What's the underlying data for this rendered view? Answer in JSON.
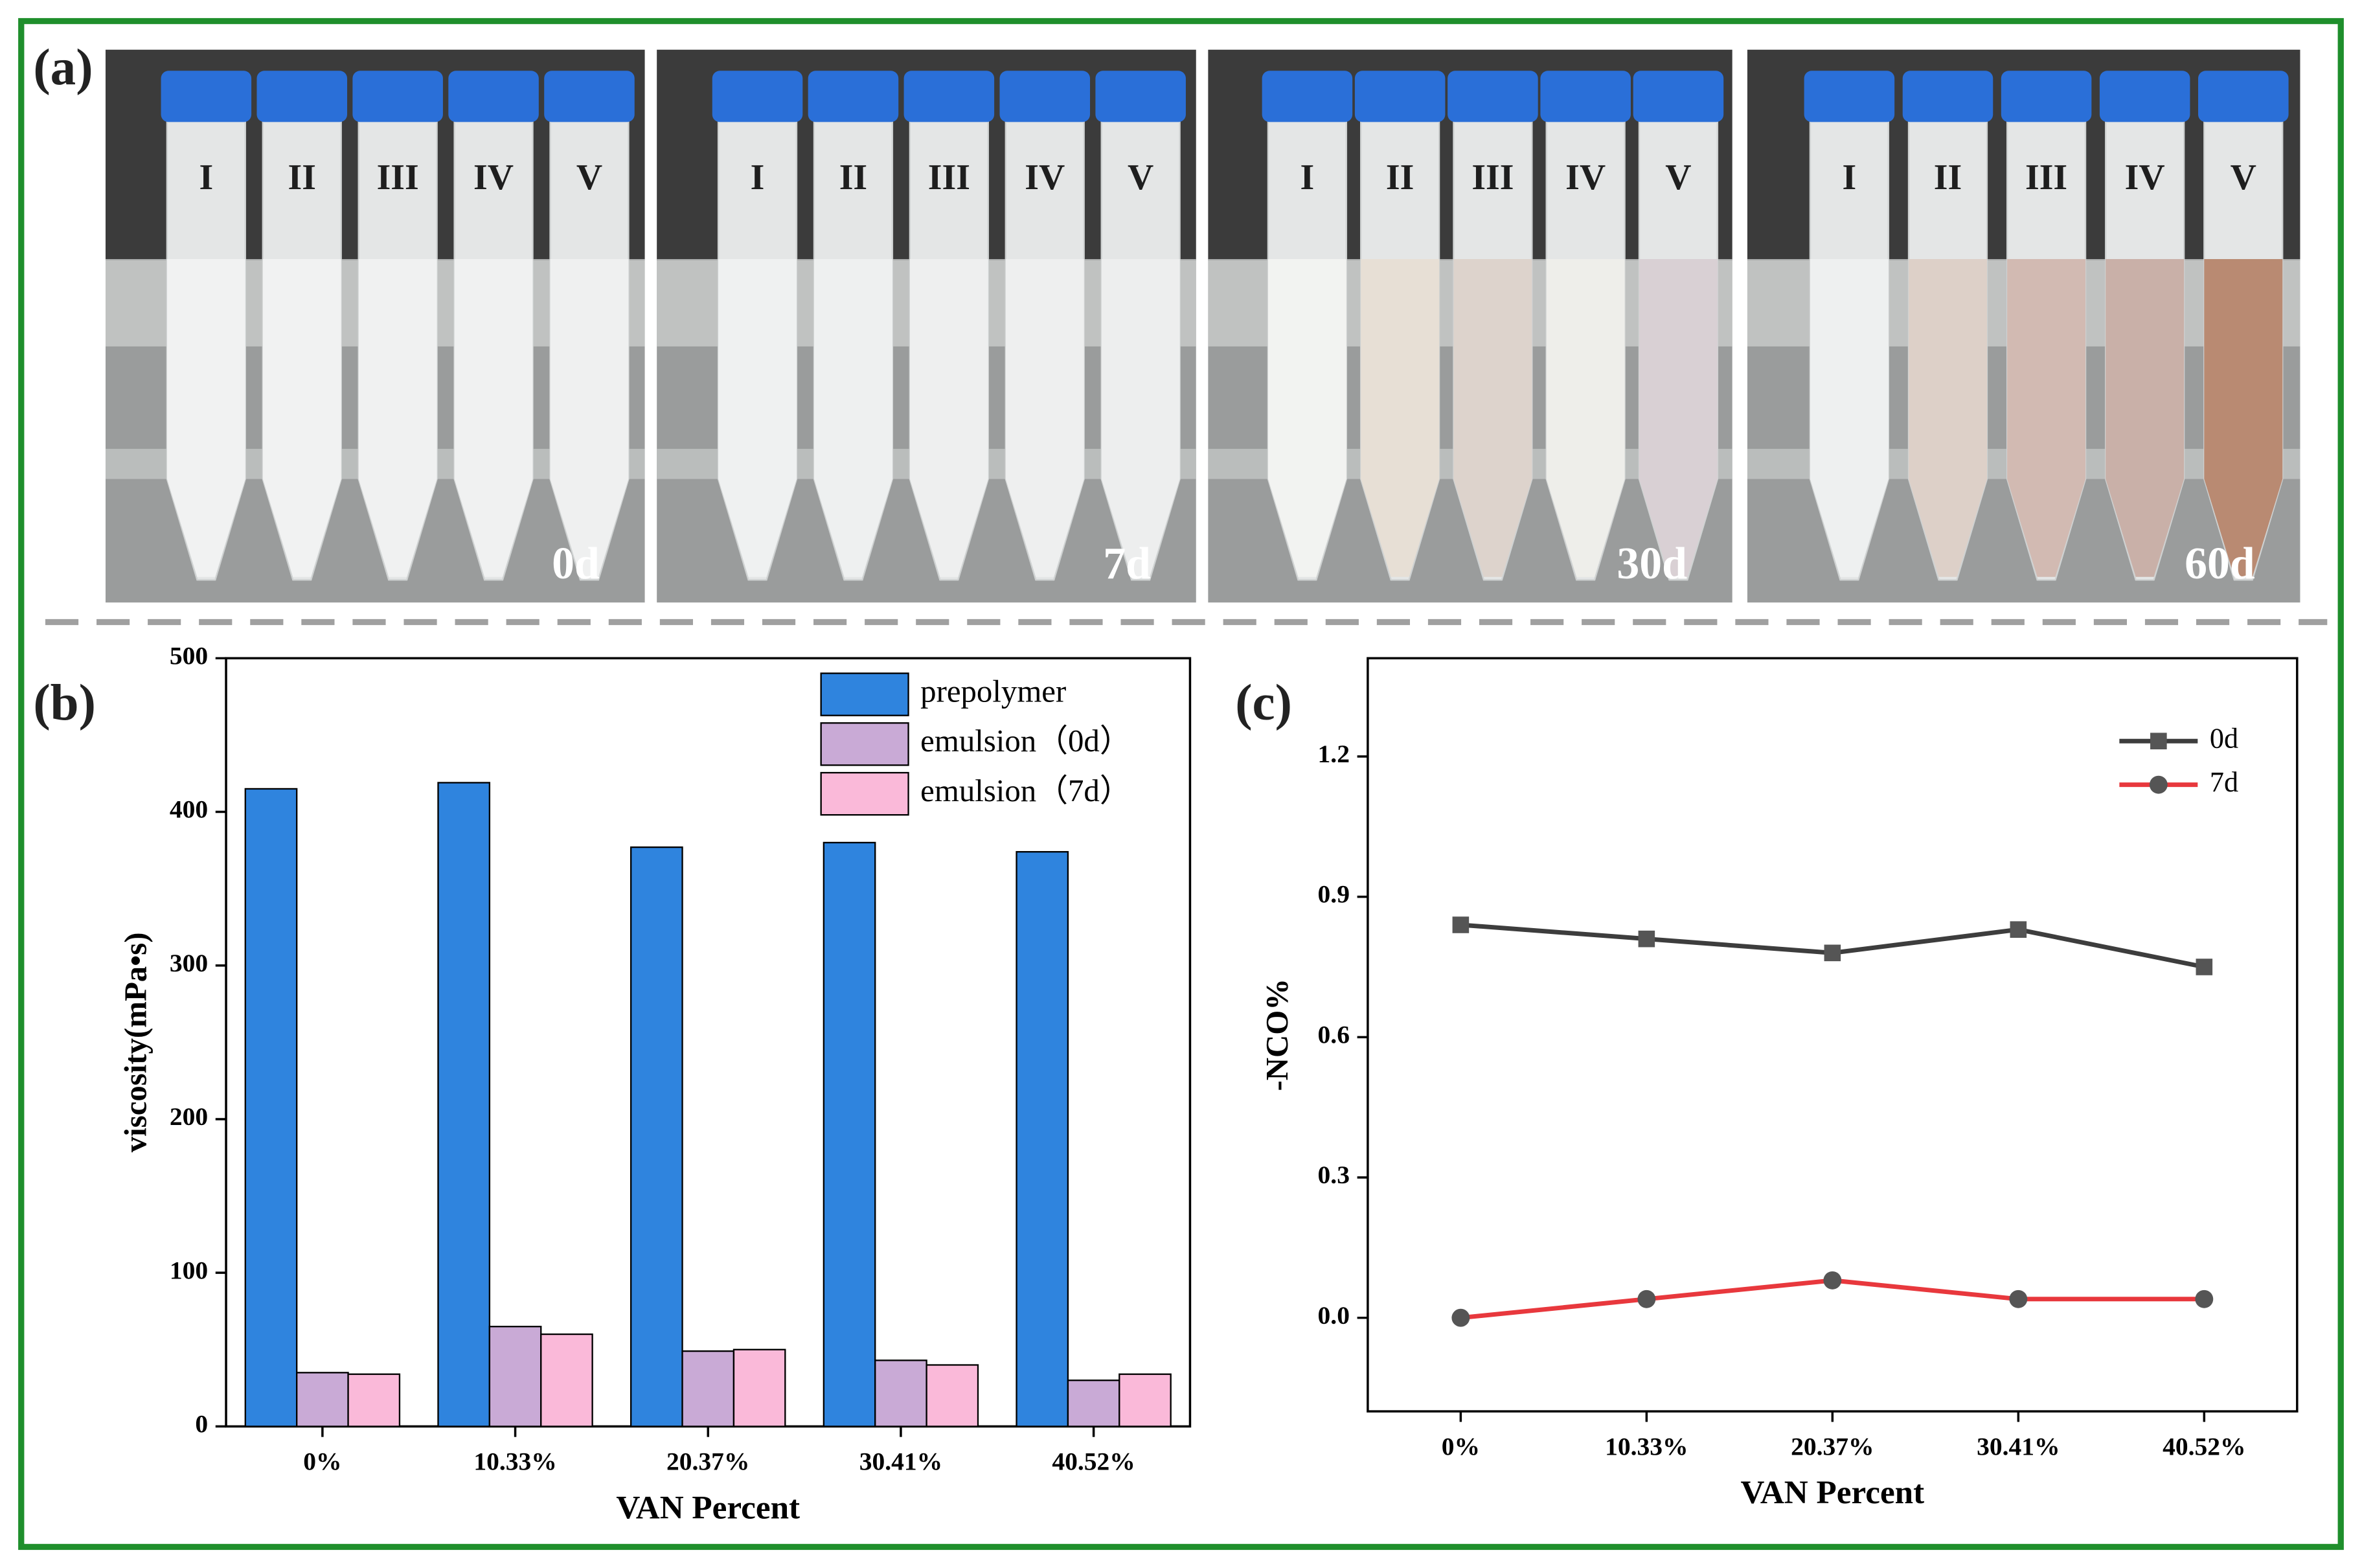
{
  "photos": {
    "label": "(a)",
    "panels": [
      {
        "day": "0d",
        "tubes": [
          "I",
          "II",
          "III",
          "IV",
          "V"
        ]
      },
      {
        "day": "7d",
        "tubes": [
          "I",
          "II",
          "III",
          "IV",
          "V"
        ]
      },
      {
        "day": "30d",
        "tubes": [
          "I",
          "II",
          "III",
          "IV",
          "V"
        ]
      },
      {
        "day": "60d",
        "tubes": [
          "I",
          "II",
          "III",
          "IV",
          "V"
        ]
      }
    ]
  },
  "chart_data": [
    {
      "type": "bar",
      "panel_label": "(b)",
      "x_label": "VAN Percent",
      "y_label": "viscosity(mPa•s)",
      "categories": [
        "0%",
        "10.33%",
        "20.37%",
        "30.41%",
        "40.52%"
      ],
      "series": [
        {
          "name": "prepolymer",
          "color": "#2f84de",
          "values": [
            415,
            419,
            377,
            380,
            374
          ]
        },
        {
          "name": "emulsion（0d）",
          "color": "#c9aad6",
          "values": [
            35,
            65,
            49,
            43,
            30
          ]
        },
        {
          "name": "emulsion（7d）",
          "color": "#fab9d9",
          "values": [
            34,
            60,
            50,
            40,
            34
          ]
        }
      ],
      "ylim": [
        0,
        500
      ],
      "yticks": [
        0,
        100,
        200,
        300,
        400,
        500
      ],
      "legend": "top-right"
    },
    {
      "type": "line",
      "panel_label": "(c)",
      "x_label": "VAN Percent",
      "y_label": "-NCO%",
      "categories": [
        "0%",
        "10.33%",
        "20.37%",
        "30.41%",
        "40.52%"
      ],
      "series": [
        {
          "name": "0d",
          "color": "#3d3d3d",
          "marker": "square",
          "values": [
            0.84,
            0.81,
            0.78,
            0.83,
            0.75
          ]
        },
        {
          "name": "7d",
          "color": "#e8383d",
          "marker": "circle",
          "values": [
            0,
            0.04,
            0.08,
            0.04,
            0.04
          ]
        }
      ],
      "ylim": [
        -0.2,
        1.41
      ],
      "yticks": [
        {
          "value": 0,
          "label": "0.0"
        },
        0.3,
        0.6,
        0.9,
        1.2
      ],
      "legend": "top-right"
    }
  ]
}
